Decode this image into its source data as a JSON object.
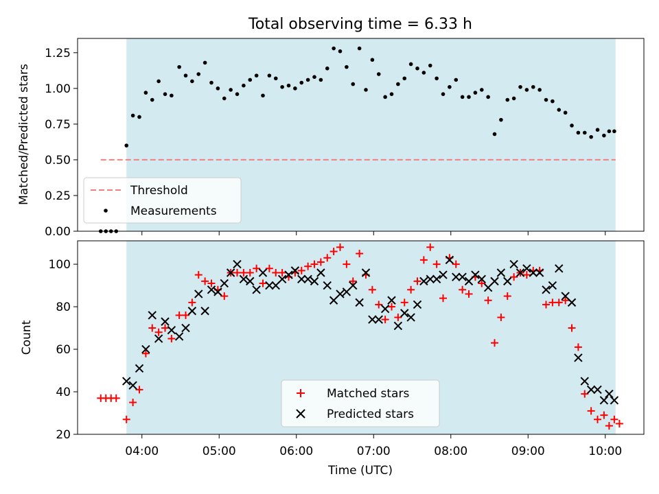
{
  "chart_data": [
    {
      "type": "scatter",
      "title": "Total observing time = 6.33 h",
      "xlabel": "",
      "ylabel": "Matched/Predicted stars",
      "xlim": [
        "03:10",
        "10:30"
      ],
      "ylim": [
        0,
        1.35
      ],
      "yticks": [
        0.0,
        0.25,
        0.5,
        0.75,
        1.0,
        1.25
      ],
      "ytick_labels": [
        "0.00",
        "0.25",
        "0.50",
        "0.75",
        "1.00",
        "1.25"
      ],
      "shaded_span": [
        "03:48",
        "10:08"
      ],
      "shade_color": "#d3eaf0",
      "legend_position": "lower-left",
      "threshold": {
        "name": "Threshold",
        "y": 0.5,
        "x_range": [
          "03:28",
          "10:08"
        ],
        "color": "#f08080",
        "style": "dashed"
      },
      "series": [
        {
          "name": "Measurements",
          "color": "#000000",
          "marker": "dot",
          "points": [
            [
              "03:28",
              0
            ],
            [
              "03:32",
              0
            ],
            [
              "03:36",
              0
            ],
            [
              "03:40",
              0
            ],
            [
              "03:48",
              0.6
            ],
            [
              "03:53",
              0.81
            ],
            [
              "03:58",
              0.8
            ],
            [
              "04:03",
              0.97
            ],
            [
              "04:08",
              0.92
            ],
            [
              "04:13",
              1.05
            ],
            [
              "04:18",
              0.96
            ],
            [
              "04:23",
              0.95
            ],
            [
              "04:29",
              1.15
            ],
            [
              "04:34",
              1.09
            ],
            [
              "04:39",
              1.05
            ],
            [
              "04:44",
              1.1
            ],
            [
              "04:49",
              1.18
            ],
            [
              "04:54",
              1.04
            ],
            [
              "04:59",
              1.0
            ],
            [
              "05:04",
              0.93
            ],
            [
              "05:09",
              0.99
            ],
            [
              "05:14",
              0.96
            ],
            [
              "05:19",
              1.02
            ],
            [
              "05:24",
              1.06
            ],
            [
              "05:29",
              1.09
            ],
            [
              "05:34",
              0.95
            ],
            [
              "05:39",
              1.09
            ],
            [
              "05:44",
              1.07
            ],
            [
              "05:49",
              1.01
            ],
            [
              "05:54",
              1.02
            ],
            [
              "05:59",
              1.0
            ],
            [
              "06:04",
              1.04
            ],
            [
              "06:09",
              1.06
            ],
            [
              "06:14",
              1.08
            ],
            [
              "06:19",
              1.06
            ],
            [
              "06:24",
              1.14
            ],
            [
              "06:29",
              1.28
            ],
            [
              "06:34",
              1.26
            ],
            [
              "06:39",
              1.15
            ],
            [
              "06:44",
              1.03
            ],
            [
              "06:49",
              1.28
            ],
            [
              "06:54",
              0.99
            ],
            [
              "06:59",
              1.2
            ],
            [
              "07:04",
              1.1
            ],
            [
              "07:09",
              0.94
            ],
            [
              "07:14",
              0.96
            ],
            [
              "07:19",
              1.03
            ],
            [
              "07:24",
              1.07
            ],
            [
              "07:29",
              1.17
            ],
            [
              "07:34",
              1.14
            ],
            [
              "07:39",
              1.11
            ],
            [
              "07:44",
              1.16
            ],
            [
              "07:49",
              1.07
            ],
            [
              "07:54",
              0.96
            ],
            [
              "07:59",
              1.01
            ],
            [
              "08:04",
              1.06
            ],
            [
              "08:09",
              0.94
            ],
            [
              "08:14",
              0.94
            ],
            [
              "08:19",
              0.97
            ],
            [
              "08:24",
              0.99
            ],
            [
              "08:29",
              0.94
            ],
            [
              "08:34",
              0.68
            ],
            [
              "08:39",
              0.78
            ],
            [
              "08:44",
              0.92
            ],
            [
              "08:49",
              0.93
            ],
            [
              "08:54",
              1.01
            ],
            [
              "08:59",
              0.99
            ],
            [
              "09:04",
              1.01
            ],
            [
              "09:09",
              0.99
            ],
            [
              "09:14",
              0.92
            ],
            [
              "09:19",
              0.91
            ],
            [
              "09:24",
              0.85
            ],
            [
              "09:29",
              0.83
            ],
            [
              "09:34",
              0.74
            ],
            [
              "09:39",
              0.69
            ],
            [
              "09:44",
              0.69
            ],
            [
              "09:49",
              0.66
            ],
            [
              "09:54",
              0.71
            ],
            [
              "09:59",
              0.67
            ],
            [
              "10:03",
              0.7
            ],
            [
              "10:07",
              0.7
            ]
          ]
        }
      ]
    },
    {
      "type": "scatter",
      "title": "",
      "xlabel": "Time (UTC)",
      "ylabel": "Count",
      "xlim": [
        "03:10",
        "10:30"
      ],
      "ylim": [
        20,
        111
      ],
      "xticks": [
        "04:00",
        "05:00",
        "06:00",
        "07:00",
        "08:00",
        "09:00",
        "10:00"
      ],
      "yticks": [
        20,
        40,
        60,
        80,
        100
      ],
      "shaded_span": [
        "03:48",
        "10:08"
      ],
      "shade_color": "#d3eaf0",
      "legend_position": "lower-center",
      "series": [
        {
          "name": "Matched stars",
          "color": "#ff0000",
          "marker": "plus",
          "points": [
            [
              "03:28",
              37
            ],
            [
              "03:32",
              37
            ],
            [
              "03:36",
              37
            ],
            [
              "03:40",
              37
            ],
            [
              "03:48",
              27
            ],
            [
              "03:53",
              35
            ],
            [
              "03:58",
              41
            ],
            [
              "04:03",
              58
            ],
            [
              "04:08",
              70
            ],
            [
              "04:13",
              68
            ],
            [
              "04:18",
              70
            ],
            [
              "04:23",
              65
            ],
            [
              "04:29",
              76
            ],
            [
              "04:34",
              76
            ],
            [
              "04:39",
              82
            ],
            [
              "04:44",
              95
            ],
            [
              "04:49",
              92
            ],
            [
              "04:54",
              91
            ],
            [
              "04:59",
              88
            ],
            [
              "05:04",
              85
            ],
            [
              "05:09",
              96
            ],
            [
              "05:14",
              96
            ],
            [
              "05:19",
              96
            ],
            [
              "05:24",
              96
            ],
            [
              "05:29",
              98
            ],
            [
              "05:34",
              91
            ],
            [
              "05:39",
              98
            ],
            [
              "05:44",
              96
            ],
            [
              "05:49",
              96
            ],
            [
              "05:54",
              94
            ],
            [
              "05:59",
              96
            ],
            [
              "06:04",
              97
            ],
            [
              "06:09",
              99
            ],
            [
              "06:14",
              100
            ],
            [
              "06:19",
              101
            ],
            [
              "06:24",
              103
            ],
            [
              "06:29",
              106
            ],
            [
              "06:34",
              108
            ],
            [
              "06:39",
              100
            ],
            [
              "06:44",
              92
            ],
            [
              "06:49",
              105
            ],
            [
              "06:54",
              95
            ],
            [
              "06:59",
              88
            ],
            [
              "07:04",
              81
            ],
            [
              "07:09",
              74
            ],
            [
              "07:14",
              80
            ],
            [
              "07:19",
              75
            ],
            [
              "07:24",
              82
            ],
            [
              "07:29",
              88
            ],
            [
              "07:34",
              92
            ],
            [
              "07:39",
              102
            ],
            [
              "07:44",
              108
            ],
            [
              "07:49",
              100
            ],
            [
              "07:54",
              84
            ],
            [
              "07:59",
              103
            ],
            [
              "08:04",
              100
            ],
            [
              "08:09",
              88
            ],
            [
              "08:14",
              86
            ],
            [
              "08:19",
              94
            ],
            [
              "08:24",
              91
            ],
            [
              "08:29",
              83
            ],
            [
              "08:34",
              63
            ],
            [
              "08:39",
              75
            ],
            [
              "08:44",
              85
            ],
            [
              "08:49",
              94
            ],
            [
              "08:54",
              96
            ],
            [
              "08:59",
              95
            ],
            [
              "09:04",
              97
            ],
            [
              "09:09",
              97
            ],
            [
              "09:14",
              81
            ],
            [
              "09:19",
              82
            ],
            [
              "09:24",
              82
            ],
            [
              "09:29",
              83
            ],
            [
              "09:34",
              70
            ],
            [
              "09:39",
              61
            ],
            [
              "09:44",
              39
            ],
            [
              "09:49",
              31
            ],
            [
              "09:54",
              27
            ],
            [
              "09:59",
              29
            ],
            [
              "10:03",
              24
            ],
            [
              "10:07",
              27
            ],
            [
              "10:11",
              25
            ]
          ]
        },
        {
          "name": "Predicted stars",
          "color": "#000000",
          "marker": "x",
          "points": [
            [
              "03:48",
              45
            ],
            [
              "03:53",
              43
            ],
            [
              "03:58",
              51
            ],
            [
              "04:03",
              60
            ],
            [
              "04:08",
              76
            ],
            [
              "04:13",
              65
            ],
            [
              "04:18",
              73
            ],
            [
              "04:23",
              69
            ],
            [
              "04:29",
              66
            ],
            [
              "04:34",
              70
            ],
            [
              "04:39",
              78
            ],
            [
              "04:44",
              86
            ],
            [
              "04:49",
              78
            ],
            [
              "04:54",
              88
            ],
            [
              "04:59",
              87
            ],
            [
              "05:04",
              91
            ],
            [
              "05:09",
              96
            ],
            [
              "05:14",
              100
            ],
            [
              "05:19",
              93
            ],
            [
              "05:24",
              92
            ],
            [
              "05:29",
              88
            ],
            [
              "05:34",
              96
            ],
            [
              "05:39",
              90
            ],
            [
              "05:44",
              90
            ],
            [
              "05:49",
              93
            ],
            [
              "05:54",
              95
            ],
            [
              "05:59",
              97
            ],
            [
              "06:04",
              93
            ],
            [
              "06:09",
              93
            ],
            [
              "06:14",
              92
            ],
            [
              "06:19",
              96
            ],
            [
              "06:24",
              90
            ],
            [
              "06:29",
              83
            ],
            [
              "06:34",
              86
            ],
            [
              "06:39",
              87
            ],
            [
              "06:44",
              90
            ],
            [
              "06:49",
              82
            ],
            [
              "06:54",
              96
            ],
            [
              "06:59",
              74
            ],
            [
              "07:04",
              74
            ],
            [
              "07:09",
              79
            ],
            [
              "07:14",
              83
            ],
            [
              "07:19",
              71
            ],
            [
              "07:24",
              77
            ],
            [
              "07:29",
              75
            ],
            [
              "07:34",
              81
            ],
            [
              "07:39",
              92
            ],
            [
              "07:44",
              93
            ],
            [
              "07:49",
              93
            ],
            [
              "07:54",
              95
            ],
            [
              "07:59",
              102
            ],
            [
              "08:04",
              94
            ],
            [
              "08:09",
              94
            ],
            [
              "08:14",
              92
            ],
            [
              "08:19",
              95
            ],
            [
              "08:24",
              93
            ],
            [
              "08:29",
              89
            ],
            [
              "08:34",
              92
            ],
            [
              "08:39",
              96
            ],
            [
              "08:44",
              92
            ],
            [
              "08:49",
              100
            ],
            [
              "08:54",
              96
            ],
            [
              "08:59",
              98
            ],
            [
              "09:04",
              96
            ],
            [
              "09:09",
              96
            ],
            [
              "09:14",
              88
            ],
            [
              "09:19",
              90
            ],
            [
              "09:24",
              98
            ],
            [
              "09:29",
              85
            ],
            [
              "09:34",
              82
            ],
            [
              "09:39",
              56
            ],
            [
              "09:44",
              45
            ],
            [
              "09:49",
              41
            ],
            [
              "09:54",
              41
            ],
            [
              "09:59",
              36
            ],
            [
              "10:03",
              39
            ],
            [
              "10:07",
              36
            ]
          ]
        }
      ]
    }
  ]
}
